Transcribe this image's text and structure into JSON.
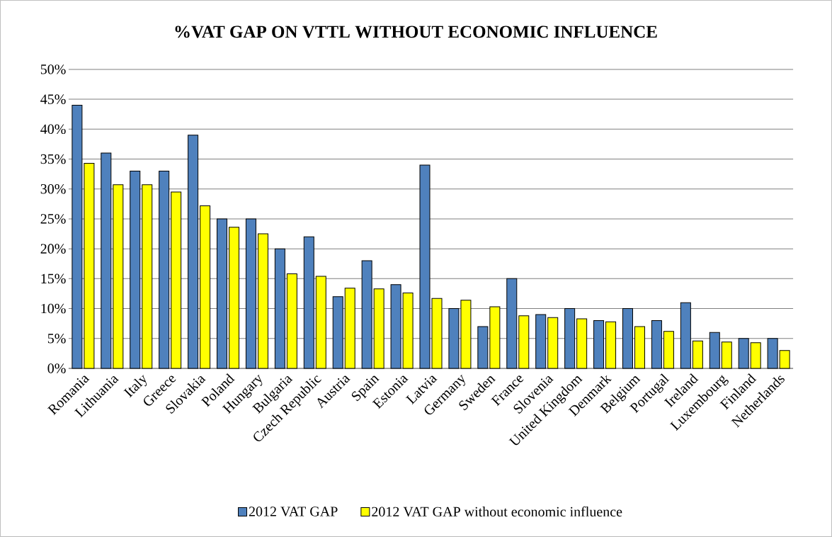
{
  "chart_data": {
    "type": "bar",
    "title": "%VAT GAP ON VTTL WITHOUT ECONOMIC INFLUENCE",
    "categories": [
      "Romania",
      "Lithuania",
      "Italy",
      "Greece",
      "Slovakia",
      "Poland",
      "Hungary",
      "Bulgaria",
      "Czech Republic",
      "Austria",
      "Spain",
      "Estonia",
      "Latvia",
      "Germany",
      "Sweden",
      "France",
      "Slovenia",
      "United Kingdom",
      "Denmark",
      "Belgium",
      "Portugal",
      "Ireland",
      "Luxembourg",
      "Finland",
      "Netherlands"
    ],
    "series": [
      {
        "name": "2012 VAT GAP",
        "color": "#4f81bd",
        "values": [
          44,
          36,
          33,
          33,
          39,
          25,
          25,
          20,
          22,
          12,
          18,
          14,
          34,
          10,
          7,
          15,
          9,
          10,
          8,
          10,
          8,
          11,
          6,
          5,
          5
        ]
      },
      {
        "name": "2012 VAT GAP without economic influence",
        "color": "#ffff00",
        "values": [
          34.3,
          30.7,
          30.7,
          29.5,
          27.2,
          23.6,
          22.5,
          15.8,
          15.4,
          13.4,
          13.3,
          12.6,
          11.7,
          11.4,
          10.3,
          8.8,
          8.5,
          8.3,
          7.8,
          7.0,
          6.2,
          4.6,
          4.4,
          4.3,
          3.0
        ]
      }
    ],
    "ylim": [
      0,
      50
    ],
    "yticks": [
      {
        "value": 0,
        "label": "0%"
      },
      {
        "value": 5,
        "label": "5%"
      },
      {
        "value": 10,
        "label": "10%"
      },
      {
        "value": 15,
        "label": "15%"
      },
      {
        "value": 20,
        "label": "20%"
      },
      {
        "value": 25,
        "label": "25%"
      },
      {
        "value": 30,
        "label": "30%"
      },
      {
        "value": 35,
        "label": "35%"
      },
      {
        "value": 40,
        "label": "40%"
      },
      {
        "value": 45,
        "label": "45%"
      },
      {
        "value": 50,
        "label": "50%"
      }
    ],
    "grid": "y",
    "legend": "bottom"
  }
}
